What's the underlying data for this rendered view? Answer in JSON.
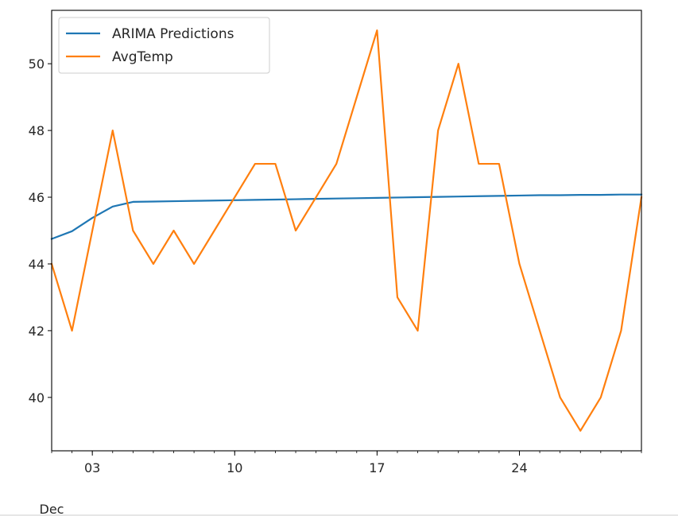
{
  "chart_data": {
    "type": "line",
    "x": [
      "2024-12-01",
      "2024-12-02",
      "2024-12-03",
      "2024-12-04",
      "2024-12-05",
      "2024-12-06",
      "2024-12-07",
      "2024-12-08",
      "2024-12-09",
      "2024-12-10",
      "2024-12-11",
      "2024-12-12",
      "2024-12-13",
      "2024-12-14",
      "2024-12-15",
      "2024-12-16",
      "2024-12-17",
      "2024-12-18",
      "2024-12-19",
      "2024-12-20",
      "2024-12-21",
      "2024-12-22",
      "2024-12-23",
      "2024-12-24",
      "2024-12-25",
      "2024-12-26",
      "2024-12-27",
      "2024-12-28",
      "2024-12-29",
      "2024-12-30"
    ],
    "series": [
      {
        "name": "ARIMA Predictions",
        "color": "#1f77b4",
        "values": [
          44.75,
          44.98,
          45.38,
          45.72,
          45.86,
          45.87,
          45.88,
          45.89,
          45.9,
          45.91,
          45.92,
          45.93,
          45.94,
          45.95,
          45.96,
          45.97,
          45.98,
          45.99,
          46.0,
          46.01,
          46.02,
          46.03,
          46.04,
          46.05,
          46.06,
          46.06,
          46.07,
          46.07,
          46.08,
          46.08
        ]
      },
      {
        "name": "AvgTemp",
        "color": "#ff7f0e",
        "values": [
          44,
          42,
          45,
          48,
          45,
          44,
          45,
          44,
          45,
          46,
          47,
          47,
          45,
          46,
          47,
          49,
          51,
          43,
          42,
          48,
          50,
          47,
          47,
          44,
          42,
          40,
          39,
          40,
          42,
          46
        ]
      }
    ],
    "ylim": [
      38.4,
      51.6
    ],
    "yticks": [
      "40",
      "42",
      "44",
      "46",
      "48",
      "50"
    ],
    "ytick_values": [
      40,
      42,
      44,
      46,
      48,
      50
    ],
    "xticks": [
      "03",
      "10",
      "17",
      "24"
    ],
    "xtick_dates": [
      "2024-12-03",
      "2024-12-10",
      "2024-12-17",
      "2024-12-24"
    ],
    "xlabel_secondary": "Dec",
    "legend_position": "upper-left",
    "grid": false
  }
}
